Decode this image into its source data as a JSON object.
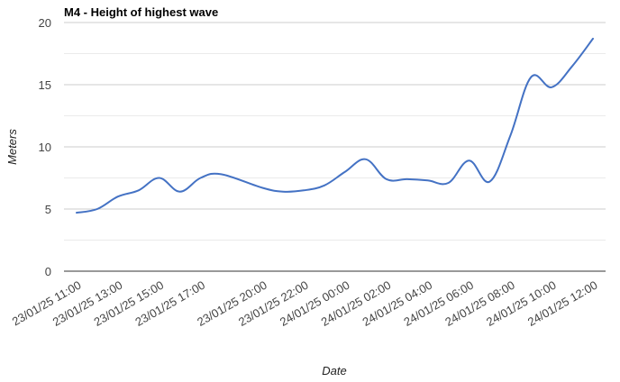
{
  "chart_data": {
    "type": "line",
    "title": "M4 - Height of highest wave",
    "xlabel": "Date",
    "ylabel": "Meters",
    "ylim": [
      0,
      20
    ],
    "yticks": [
      0,
      5,
      10,
      15,
      20
    ],
    "grid": true,
    "legend": "none",
    "x_tick_labels": [
      "23/01/25 11:00",
      "23/01/25 13:00",
      "23/01/25 15:00",
      "23/01/25 17:00",
      "23/01/25 20:00",
      "23/01/25 22:00",
      "24/01/25 00:00",
      "24/01/25 02:00",
      "24/01/25 04:00",
      "24/01/25 06:00",
      "24/01/25 08:00",
      "24/01/25 10:00",
      "24/01/25 12:00"
    ],
    "series": [
      {
        "name": "",
        "color": "#4472c4",
        "x": [
          "23/01/25 11:00",
          "23/01/25 12:00",
          "23/01/25 13:00",
          "23/01/25 14:00",
          "23/01/25 15:00",
          "23/01/25 16:00",
          "23/01/25 17:00",
          "23/01/25 18:00",
          "23/01/25 20:00",
          "23/01/25 21:00",
          "23/01/25 22:00",
          "23/01/25 23:00",
          "24/01/25 00:00",
          "24/01/25 01:00",
          "24/01/25 02:00",
          "24/01/25 03:00",
          "24/01/25 04:00",
          "24/01/25 05:00",
          "24/01/25 06:00",
          "24/01/25 07:00",
          "24/01/25 08:00",
          "24/01/25 09:00",
          "24/01/25 10:00",
          "24/01/25 11:00",
          "24/01/25 12:00"
        ],
        "values": [
          4.7,
          5.0,
          6.0,
          6.5,
          7.5,
          6.4,
          7.5,
          7.8,
          6.7,
          6.4,
          6.5,
          6.9,
          8.0,
          9.0,
          7.4,
          7.4,
          7.3,
          7.1,
          8.9,
          7.2,
          10.9,
          15.6,
          14.8,
          16.5,
          18.7
        ]
      }
    ]
  }
}
